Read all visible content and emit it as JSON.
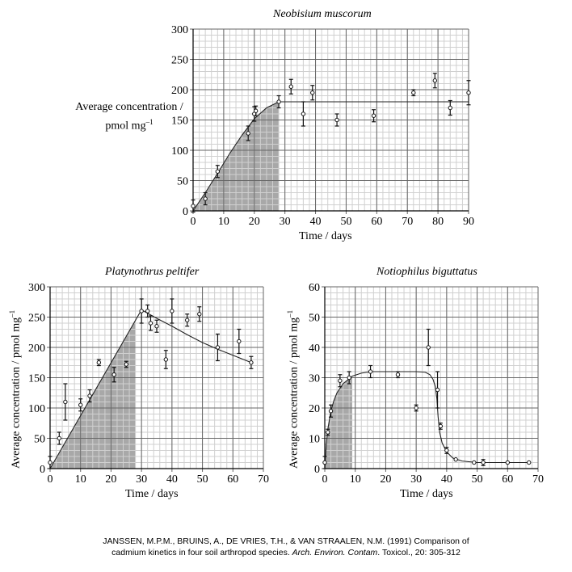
{
  "chart_data": [
    {
      "type": "scatter",
      "title": "Neobisium muscorum",
      "xlabel": "Time / days",
      "ylabel": "Average concentration / pmol mg",
      "ylabel_sup": "–1",
      "xlim": [
        0,
        90
      ],
      "ylim": [
        0,
        300
      ],
      "xticks": [
        0,
        10,
        20,
        30,
        40,
        50,
        60,
        70,
        80,
        90
      ],
      "yticks": [
        0,
        50,
        100,
        150,
        200,
        250,
        300
      ],
      "grid": true,
      "shaded_x": [
        0,
        28
      ],
      "points": [
        {
          "x": 0,
          "y": 8,
          "err": 10
        },
        {
          "x": 4,
          "y": 20,
          "err": 10
        },
        {
          "x": 8,
          "y": 65,
          "err": 10
        },
        {
          "x": 18,
          "y": 128,
          "err": 12
        },
        {
          "x": 20,
          "y": 160,
          "err": 12
        },
        {
          "x": 20.5,
          "y": 165,
          "err": 8
        },
        {
          "x": 28,
          "y": 180,
          "err": 10
        },
        {
          "x": 32,
          "y": 205,
          "err": 12
        },
        {
          "x": 36,
          "y": 160,
          "err": 20
        },
        {
          "x": 39,
          "y": 195,
          "err": 12
        },
        {
          "x": 47,
          "y": 150,
          "err": 10
        },
        {
          "x": 59,
          "y": 157,
          "err": 10
        },
        {
          "x": 72,
          "y": 195,
          "err": 5
        },
        {
          "x": 79,
          "y": 215,
          "err": 12
        },
        {
          "x": 84,
          "y": 170,
          "err": 12
        },
        {
          "x": 90,
          "y": 195,
          "err": 20
        }
      ],
      "fit_curve": [
        [
          0,
          0
        ],
        [
          4,
          30
        ],
        [
          8,
          62
        ],
        [
          12,
          95
        ],
        [
          16,
          125
        ],
        [
          20,
          152
        ],
        [
          24,
          170
        ],
        [
          28,
          180
        ],
        [
          90,
          180
        ]
      ]
    },
    {
      "type": "scatter",
      "title": "Platynothrus peltifer",
      "xlabel": "Time / days",
      "ylabel": "Average concentration / pmol mg",
      "ylabel_sup": "–1",
      "xlim": [
        0,
        70
      ],
      "ylim": [
        0,
        300
      ],
      "xticks": [
        0,
        10,
        20,
        30,
        40,
        50,
        60,
        70
      ],
      "yticks": [
        0,
        50,
        100,
        150,
        200,
        250,
        300
      ],
      "grid": true,
      "shaded_x": [
        0,
        28
      ],
      "points": [
        {
          "x": 0,
          "y": 10,
          "err": 10
        },
        {
          "x": 3,
          "y": 50,
          "err": 10
        },
        {
          "x": 5,
          "y": 110,
          "err": 30
        },
        {
          "x": 10,
          "y": 105,
          "err": 10
        },
        {
          "x": 13,
          "y": 120,
          "err": 10
        },
        {
          "x": 16,
          "y": 175,
          "err": 5
        },
        {
          "x": 21,
          "y": 155,
          "err": 12
        },
        {
          "x": 25,
          "y": 172,
          "err": 5
        },
        {
          "x": 30,
          "y": 260,
          "err": 20
        },
        {
          "x": 32,
          "y": 260,
          "err": 10
        },
        {
          "x": 33,
          "y": 240,
          "err": 12
        },
        {
          "x": 35,
          "y": 235,
          "err": 10
        },
        {
          "x": 38,
          "y": 180,
          "err": 15
        },
        {
          "x": 40,
          "y": 260,
          "err": 20
        },
        {
          "x": 45,
          "y": 245,
          "err": 10
        },
        {
          "x": 49,
          "y": 255,
          "err": 12
        },
        {
          "x": 55,
          "y": 200,
          "err": 22
        },
        {
          "x": 62,
          "y": 210,
          "err": 20
        },
        {
          "x": 66,
          "y": 175,
          "err": 10
        }
      ],
      "fit_curve": [
        [
          0,
          0
        ],
        [
          30,
          262
        ],
        [
          35,
          248
        ],
        [
          40,
          235
        ],
        [
          45,
          221
        ],
        [
          50,
          208
        ],
        [
          55,
          197
        ],
        [
          60,
          187
        ],
        [
          66,
          175
        ]
      ]
    },
    {
      "type": "scatter",
      "title": "Notiophilus biguttatus",
      "xlabel": "Time / days",
      "ylabel": "Average concentration / pmol mg",
      "ylabel_sup": "–1",
      "xlim": [
        0,
        70
      ],
      "ylim": [
        0,
        60
      ],
      "xticks": [
        0,
        10,
        20,
        30,
        40,
        50,
        60,
        70
      ],
      "yticks": [
        0,
        10,
        20,
        30,
        40,
        50,
        60
      ],
      "grid": true,
      "shaded_x": [
        0,
        9
      ],
      "points": [
        {
          "x": 0,
          "y": 2,
          "err": 2
        },
        {
          "x": 1,
          "y": 12,
          "err": 1
        },
        {
          "x": 2,
          "y": 19,
          "err": 2
        },
        {
          "x": 5,
          "y": 29,
          "err": 2
        },
        {
          "x": 8,
          "y": 30,
          "err": 2
        },
        {
          "x": 15,
          "y": 32,
          "err": 2
        },
        {
          "x": 24,
          "y": 31,
          "err": 1
        },
        {
          "x": 30,
          "y": 20,
          "err": 1
        },
        {
          "x": 34,
          "y": 40,
          "err": 6
        },
        {
          "x": 37,
          "y": 26,
          "err": 6
        },
        {
          "x": 38,
          "y": 14,
          "err": 1
        },
        {
          "x": 40,
          "y": 6,
          "err": 1
        },
        {
          "x": 43,
          "y": 3,
          "err": 0
        },
        {
          "x": 49,
          "y": 2,
          "err": 0
        },
        {
          "x": 52,
          "y": 2,
          "err": 1
        },
        {
          "x": 60,
          "y": 2,
          "err": 0
        },
        {
          "x": 67,
          "y": 2,
          "err": 0
        }
      ],
      "fit_curve": [
        [
          0,
          0
        ],
        [
          0.5,
          8
        ],
        [
          1,
          13
        ],
        [
          2,
          19
        ],
        [
          3,
          22.5
        ],
        [
          4,
          25
        ],
        [
          6,
          28
        ],
        [
          9,
          30.5
        ],
        [
          12,
          31.5
        ],
        [
          15,
          32
        ],
        [
          30,
          32
        ],
        [
          33,
          31.8
        ],
        [
          34.5,
          31
        ],
        [
          35.5,
          29.5
        ],
        [
          36.3,
          27
        ],
        [
          36.8,
          23
        ],
        [
          37.2,
          17
        ],
        [
          37.7,
          12
        ],
        [
          38.5,
          8.5
        ],
        [
          40,
          5.5
        ],
        [
          42,
          3.5
        ],
        [
          45,
          2.5
        ],
        [
          50,
          2
        ],
        [
          67,
          2
        ]
      ]
    }
  ],
  "citation": {
    "line1": "JANSSEN, M.P.M., BRUINS, A., DE VRIES, T.H., & VAN STRAALEN, N.M. (1991) Comparison of",
    "line2_pre": "cadmium kinetics in four soil arthropod species. ",
    "line2_journal": "Arch. Environ. Contam",
    "line2_post": ". Toxicol., 20: 305-312"
  }
}
